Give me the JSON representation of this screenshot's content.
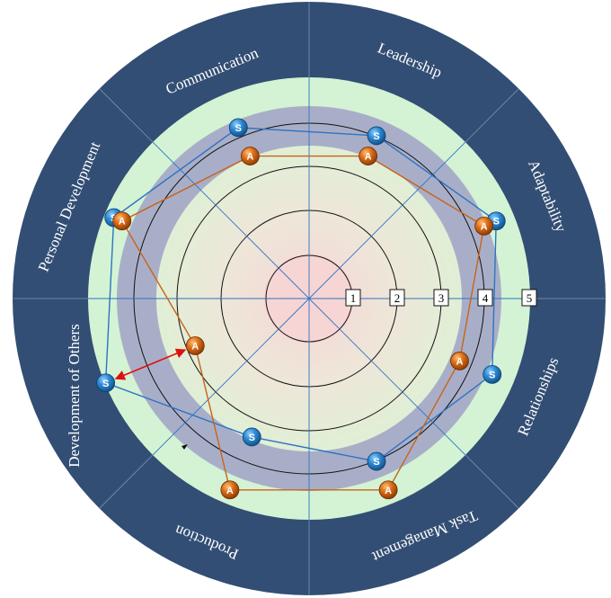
{
  "chart_data": {
    "type": "radar",
    "axes": [
      "Leadership",
      "Adaptability",
      "Relationships",
      "Task Management",
      "Production",
      "Development of Others",
      "Personal Development",
      "Communication"
    ],
    "scale_labels": [
      "1",
      "2",
      "3",
      "4",
      "5"
    ],
    "series": [
      {
        "marker": "S",
        "values": [
          4.0,
          4.6,
          4.5,
          4.0,
          3.4,
          5.0,
          4.8,
          4.2
        ]
      },
      {
        "marker": "A",
        "values": [
          3.5,
          4.3,
          3.7,
          4.7,
          4.7,
          2.8,
          4.6,
          3.5
        ]
      }
    ],
    "colors": {
      "outer_ring": "#324E74",
      "light_green_band": "#D3F3D4",
      "gray_band": "#A9AEC8",
      "inner_disc": "#E4EDD7",
      "center": "#F6D4D4",
      "spokes": "#2E73C2",
      "s_line": "#2E73C2",
      "a_line": "#C7641A",
      "s_marker": "#2C86CF",
      "a_marker": "#D46B16",
      "gap_arrow": "#E01010"
    },
    "annotation": {
      "type": "double-arrow",
      "between": [
        "Development of Others S",
        "Development of Others A"
      ]
    }
  }
}
